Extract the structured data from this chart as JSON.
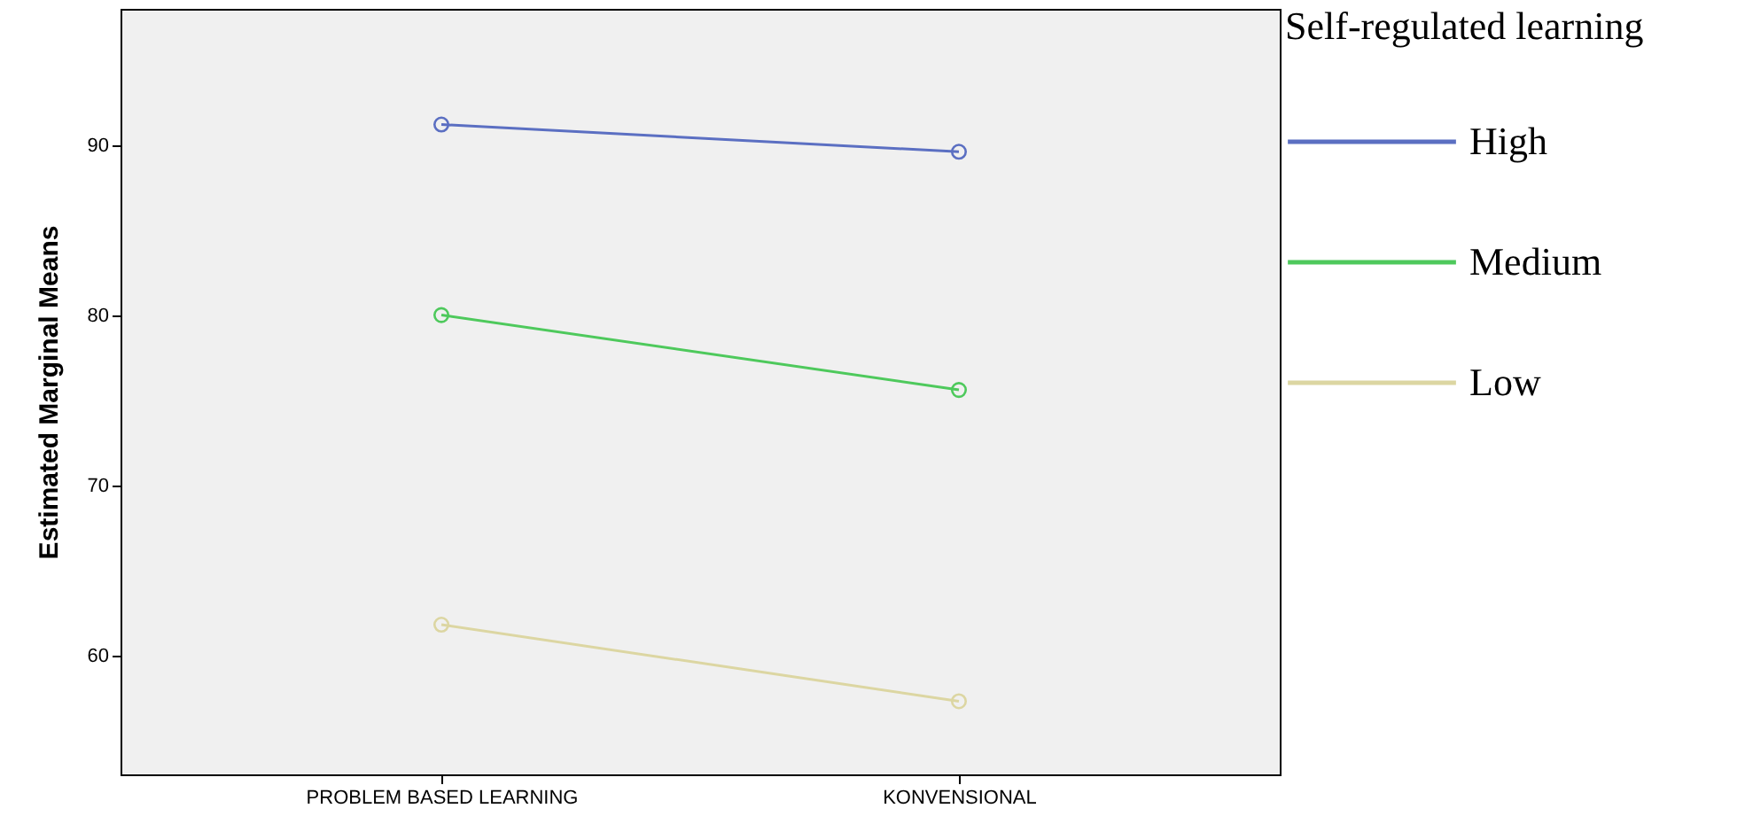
{
  "chart_data": {
    "type": "line",
    "ylabel": "Estimated Marginal Means",
    "legend_title": "Self-regulated learning",
    "categories": [
      "PROBLEM BASED LEARNING",
      "KONVENSIONAL"
    ],
    "series": [
      {
        "name": "High",
        "color": "#5b6fc2",
        "values": [
          91.2,
          89.6
        ]
      },
      {
        "name": "Medium",
        "color": "#4ec95c",
        "values": [
          80.0,
          75.6
        ]
      },
      {
        "name": "Low",
        "color": "#dcd6a2",
        "values": [
          61.8,
          57.3
        ]
      }
    ],
    "ylim": [
      53,
      98
    ],
    "yticks": [
      60,
      70,
      80,
      90
    ],
    "grid": false,
    "legend": "right",
    "marker": "circle",
    "line_style": "solid"
  }
}
